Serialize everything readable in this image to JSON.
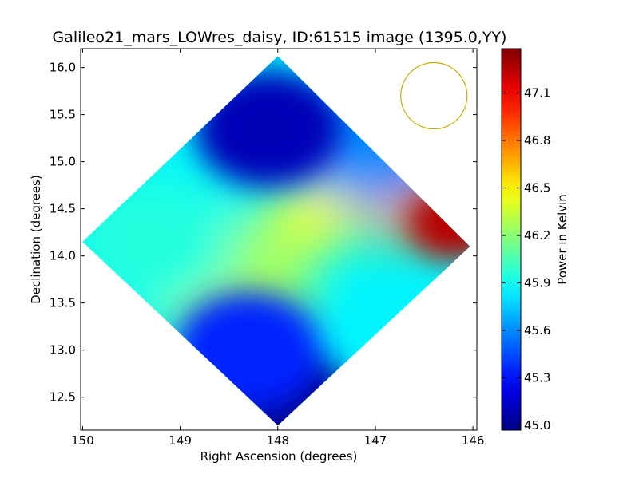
{
  "chart_data": {
    "type": "heatmap",
    "title": "Galileo21_mars_LOWres_daisy, ID:61515 image (1395.0,YY)",
    "xlabel": "Right Ascension (degrees)",
    "ylabel": "Declination (degrees)",
    "colorbar_label": "Power in Kelvin",
    "xlim": [
      150.02,
      145.96
    ],
    "ylim": [
      12.15,
      16.2
    ],
    "x_ticks": [
      150,
      149,
      148,
      147,
      146
    ],
    "x_tick_labels": [
      "150",
      "149",
      "148",
      "147",
      "146"
    ],
    "y_ticks": [
      12.5,
      13.0,
      13.5,
      14.0,
      14.5,
      15.0,
      15.5,
      16.0
    ],
    "y_tick_labels": [
      "12.5",
      "13.0",
      "13.5",
      "14.0",
      "14.5",
      "15.0",
      "15.5",
      "16.0"
    ],
    "colorbar_range": [
      44.97,
      47.38
    ],
    "colorbar_ticks": [
      45.0,
      45.3,
      45.6,
      45.9,
      46.2,
      46.5,
      46.8,
      47.1
    ],
    "colorbar_tick_labels": [
      "45.0",
      "45.3",
      "45.6",
      "45.9",
      "46.2",
      "46.5",
      "46.8",
      "47.1"
    ],
    "colormap": "jet",
    "map_footprint_corners": [
      [
        148.0,
        16.12
      ],
      [
        146.03,
        14.1
      ],
      [
        148.0,
        12.2
      ],
      [
        150.0,
        14.15
      ]
    ],
    "beam_circle": {
      "center": [
        146.4,
        15.7
      ],
      "radius_deg": 0.36,
      "color": "#c0b000"
    },
    "field_features": [
      {
        "position": [
          148.1,
          15.35
        ],
        "value": 45.1,
        "region": "low"
      },
      {
        "position": [
          148.0,
          12.45
        ],
        "value": 45.0,
        "region": "low"
      },
      {
        "position": [
          146.2,
          14.35
        ],
        "value": 47.25,
        "region": "high"
      },
      {
        "position": [
          146.7,
          14.55
        ],
        "value": 46.7,
        "region": "high"
      },
      {
        "position": [
          147.6,
          14.45
        ],
        "value": 46.45,
        "region": "high"
      },
      {
        "position": [
          148.5,
          13.75
        ],
        "value": 46.25,
        "region": "mid"
      },
      {
        "position": [
          149.3,
          14.15
        ],
        "value": 45.95,
        "region": "mid"
      },
      {
        "position": [
          147.0,
          15.25
        ],
        "value": 45.6,
        "region": "mid"
      },
      {
        "position": [
          148.3,
          13.0
        ],
        "value": 45.35,
        "region": "low"
      }
    ]
  }
}
